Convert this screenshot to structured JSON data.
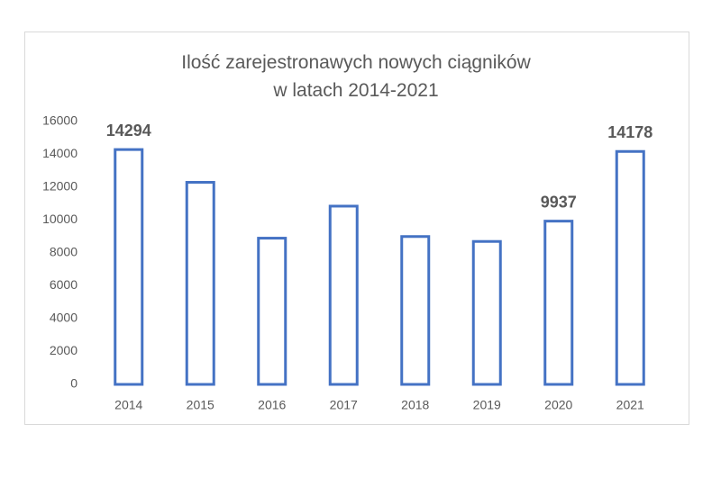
{
  "chart_data": {
    "type": "bar",
    "title": "Ilość zarejestronawych nowych ciągników w latach 2014-2021",
    "categories": [
      "2014",
      "2015",
      "2016",
      "2017",
      "2018",
      "2019",
      "2020",
      "2021"
    ],
    "values": [
      14294,
      12300,
      8900,
      10850,
      9000,
      8700,
      9937,
      14178
    ],
    "value_labels": [
      "14294",
      null,
      null,
      null,
      null,
      null,
      "9937",
      "14178"
    ],
    "color": "#4472c4",
    "ylim": [
      0,
      16000
    ],
    "yticks": [
      0,
      2000,
      4000,
      6000,
      8000,
      10000,
      12000,
      14000,
      16000
    ],
    "grid": false
  }
}
